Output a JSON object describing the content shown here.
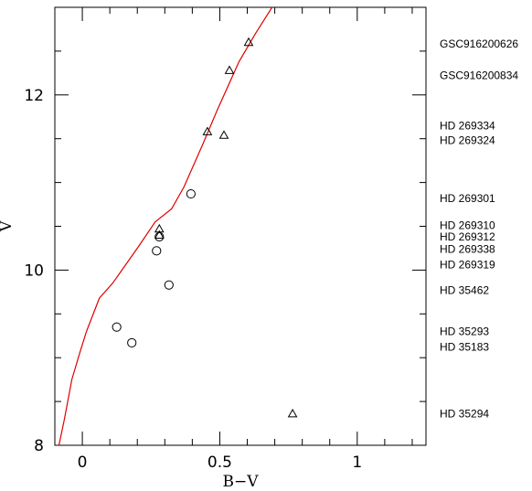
{
  "chart_data": {
    "type": "scatter",
    "xlabel": "B−V",
    "ylabel": "V",
    "xlim": [
      -0.1,
      1.25
    ],
    "ylim": [
      13.0,
      8.0
    ],
    "y_inverted": true,
    "grid": false,
    "x_ticks": [
      0,
      0.5,
      1
    ],
    "x_tick_labels": [
      "0",
      "0.5",
      "1"
    ],
    "y_ticks": [
      8,
      10,
      12
    ],
    "y_tick_labels": [
      "8",
      "10",
      "12"
    ],
    "curve_color": "#e00000",
    "curve": [
      {
        "x": -0.085,
        "y": 8.0
      },
      {
        "x": -0.065,
        "y": 8.3
      },
      {
        "x": -0.038,
        "y": 8.75
      },
      {
        "x": -0.01,
        "y": 9.05
      },
      {
        "x": 0.015,
        "y": 9.3
      },
      {
        "x": 0.062,
        "y": 9.68
      },
      {
        "x": 0.11,
        "y": 9.85
      },
      {
        "x": 0.2,
        "y": 10.25
      },
      {
        "x": 0.265,
        "y": 10.55
      },
      {
        "x": 0.325,
        "y": 10.7
      },
      {
        "x": 0.37,
        "y": 10.95
      },
      {
        "x": 0.44,
        "y": 11.45
      },
      {
        "x": 0.49,
        "y": 11.82
      },
      {
        "x": 0.57,
        "y": 12.38
      },
      {
        "x": 0.63,
        "y": 12.7
      },
      {
        "x": 0.69,
        "y": 13.0
      }
    ],
    "series": [
      {
        "marker": "circle",
        "points": [
          {
            "x": 0.18,
            "y": 9.17
          },
          {
            "x": 0.125,
            "y": 9.35
          },
          {
            "x": 0.315,
            "y": 9.83
          },
          {
            "x": 0.27,
            "y": 10.22
          },
          {
            "x": 0.28,
            "y": 10.38
          },
          {
            "x": 0.395,
            "y": 10.87
          }
        ]
      },
      {
        "marker": "triangle",
        "points": [
          {
            "x": 0.765,
            "y": 8.36
          },
          {
            "x": 0.28,
            "y": 10.4
          },
          {
            "x": 0.28,
            "y": 10.47
          },
          {
            "x": 0.455,
            "y": 11.58
          },
          {
            "x": 0.515,
            "y": 11.54
          },
          {
            "x": 0.535,
            "y": 12.28
          },
          {
            "x": 0.605,
            "y": 12.6
          }
        ]
      }
    ],
    "star_labels": [
      {
        "text": "HD 35294",
        "y": 8.36
      },
      {
        "text": "HD 35183",
        "y": 9.12
      },
      {
        "text": "HD 35293",
        "y": 9.3
      },
      {
        "text": "HD 35462",
        "y": 9.77
      },
      {
        "text": "HD 269319",
        "y": 10.06
      },
      {
        "text": "HD 269338",
        "y": 10.24
      },
      {
        "text": "HD 269312",
        "y": 10.38
      },
      {
        "text": "HD 269310",
        "y": 10.51
      },
      {
        "text": "HD 269301",
        "y": 10.82
      },
      {
        "text": "HD 269324",
        "y": 11.48
      },
      {
        "text": "HD 269334",
        "y": 11.65
      },
      {
        "text": "GSC916200834",
        "y": 12.22
      },
      {
        "text": "GSC916200626",
        "y": 12.58
      }
    ]
  }
}
